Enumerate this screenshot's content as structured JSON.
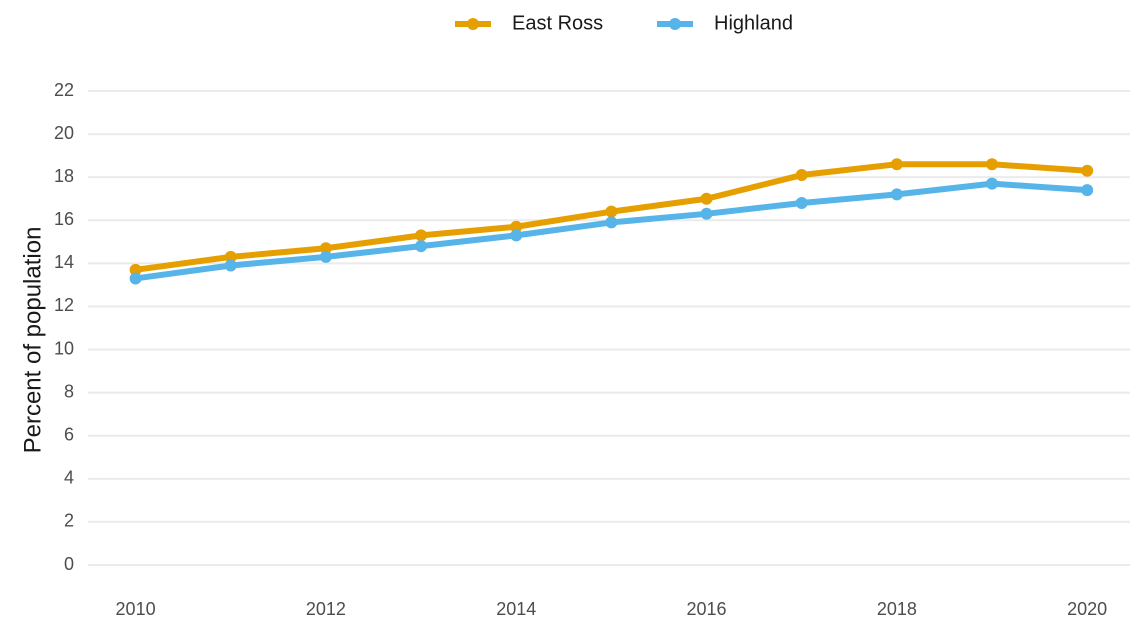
{
  "chart_data": {
    "type": "line",
    "y_label": "Percent of population",
    "x": [
      2010,
      2011,
      2012,
      2013,
      2014,
      2015,
      2016,
      2017,
      2018,
      2019,
      2020
    ],
    "series": [
      {
        "name": "East Ross",
        "color": "#E69F00",
        "values": [
          13.7,
          14.3,
          14.7,
          15.3,
          15.7,
          16.4,
          17.0,
          18.1,
          18.6,
          18.6,
          18.3
        ]
      },
      {
        "name": "Highland",
        "color": "#56B4E9",
        "values": [
          13.3,
          13.9,
          14.3,
          14.8,
          15.3,
          15.9,
          16.3,
          16.8,
          17.2,
          17.7,
          17.4
        ]
      }
    ],
    "xlim": [
      2009.5,
      2020.45
    ],
    "xticks": [
      2010,
      2012,
      2014,
      2016,
      2018,
      2020
    ],
    "ylim": [
      0,
      22
    ],
    "yticks": [
      0,
      2,
      4,
      6,
      8,
      10,
      12,
      14,
      16,
      18,
      20,
      22
    ],
    "grid": true,
    "legend": "top"
  }
}
